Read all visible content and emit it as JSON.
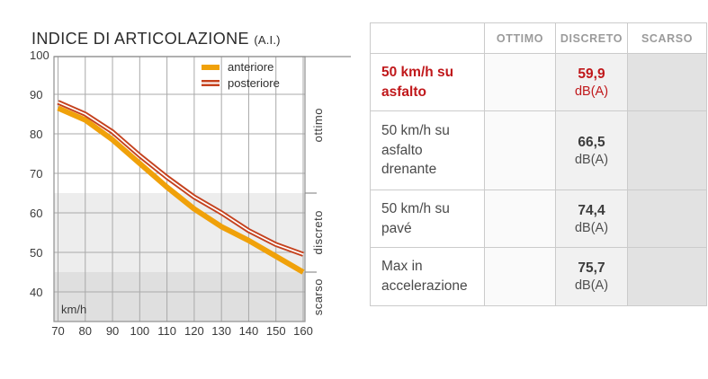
{
  "chart": {
    "title": "INDICE DI ARTICOLAZIONE",
    "title_suffix": "(A.I.)",
    "x_axis_label": "km/h",
    "legend": [
      {
        "label": "anteriore",
        "color": "#f0a10a",
        "style": "solid"
      },
      {
        "label": "posteriore",
        "color": "#c5421e",
        "style": "double"
      }
    ]
  },
  "chart_data": {
    "type": "line",
    "title": "INDICE DI ARTICOLAZIONE (A.I.)",
    "xlabel": "km/h",
    "ylabel": "",
    "x": [
      70,
      80,
      90,
      100,
      110,
      120,
      130,
      140,
      150,
      160
    ],
    "series": [
      {
        "name": "anteriore",
        "color": "#f0a10a",
        "style": "solid",
        "values": [
          86.5,
          83.5,
          78.5,
          72.5,
          66.5,
          61,
          56.5,
          53,
          49,
          45
        ]
      },
      {
        "name": "posteriore",
        "color": "#c5421e",
        "style": "double",
        "values": [
          88,
          85,
          80.5,
          74.5,
          69,
          64,
          60,
          55.5,
          52,
          49.5
        ]
      }
    ],
    "xlim": [
      70,
      160
    ],
    "ylim": [
      33,
      100
    ],
    "yticks": [
      100,
      90,
      80,
      70,
      60,
      50,
      40
    ],
    "xticks": [
      70,
      80,
      90,
      100,
      110,
      120,
      130,
      140,
      150,
      160
    ],
    "grid": true,
    "legend_position": "top-right",
    "bands": [
      {
        "label": "ottimo",
        "range": [
          65,
          100
        ],
        "bg": "#ffffff"
      },
      {
        "label": "discreto",
        "range": [
          45,
          65
        ],
        "bg": "#ededed"
      },
      {
        "label": "scarso",
        "range": [
          33,
          45
        ],
        "bg": "#dfdfdf"
      }
    ],
    "colors": {
      "grid": "#a9a9a9",
      "border": "#8f8f8f"
    }
  },
  "table": {
    "headers": [
      "OTTIMO",
      "DISCRETO",
      "SCARSO"
    ],
    "rows": [
      {
        "label": "50 km/h su asfalto",
        "value": "59,9",
        "unit": "dB(A)",
        "rating": "DISCRETO",
        "highlight": true
      },
      {
        "label": "50 km/h su asfalto drenante",
        "value": "66,5",
        "unit": "dB(A)",
        "rating": "DISCRETO",
        "highlight": false
      },
      {
        "label": "50 km/h su pavé",
        "value": "74,4",
        "unit": "dB(A)",
        "rating": "DISCRETO",
        "highlight": false
      },
      {
        "label": "Max in accelerazione",
        "value": "75,7",
        "unit": "dB(A)",
        "rating": "DISCRETO",
        "highlight": false
      }
    ],
    "colors": {
      "highlight": "#c0181b",
      "header_text": "#9b9b9b",
      "col_ottimo_bg": "#fafafa",
      "col_discreto_bg": "#f1f1f1",
      "col_scarso_bg": "#e2e2e2",
      "border": "#cbcbcb"
    }
  }
}
